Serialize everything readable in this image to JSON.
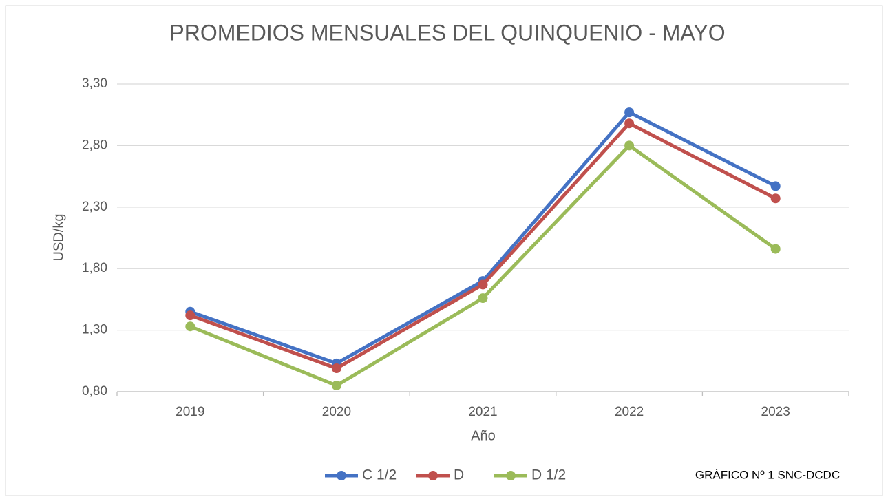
{
  "chart_data": {
    "type": "line",
    "title": "PROMEDIOS MENSUALES DEL QUINQUENIO - MAYO",
    "x_label": "Año",
    "y_label": "USD/kg",
    "note": "GRÁFICO Nº 1 SNC-DCDC",
    "categories": [
      "2019",
      "2020",
      "2021",
      "2022",
      "2023"
    ],
    "series": [
      {
        "name": "C 1/2",
        "color": "#4472c4",
        "values": [
          1.45,
          1.03,
          1.7,
          3.07,
          2.47
        ]
      },
      {
        "name": "D",
        "color": "#c0504d",
        "values": [
          1.42,
          0.99,
          1.67,
          2.98,
          2.37
        ]
      },
      {
        "name": "D 1/2",
        "color": "#9bbb59",
        "values": [
          1.33,
          0.85,
          1.56,
          2.8,
          1.96
        ]
      }
    ],
    "ylim": [
      0.8,
      3.3
    ],
    "yticks": [
      {
        "value": 0.8,
        "label": "0,80"
      },
      {
        "value": 1.3,
        "label": "1,30"
      },
      {
        "value": 1.8,
        "label": "1,80"
      },
      {
        "value": 2.3,
        "label": "2,30"
      },
      {
        "value": 2.8,
        "label": "2,80"
      },
      {
        "value": 3.3,
        "label": "3,30"
      }
    ],
    "grid": true,
    "legend": "bottom"
  }
}
